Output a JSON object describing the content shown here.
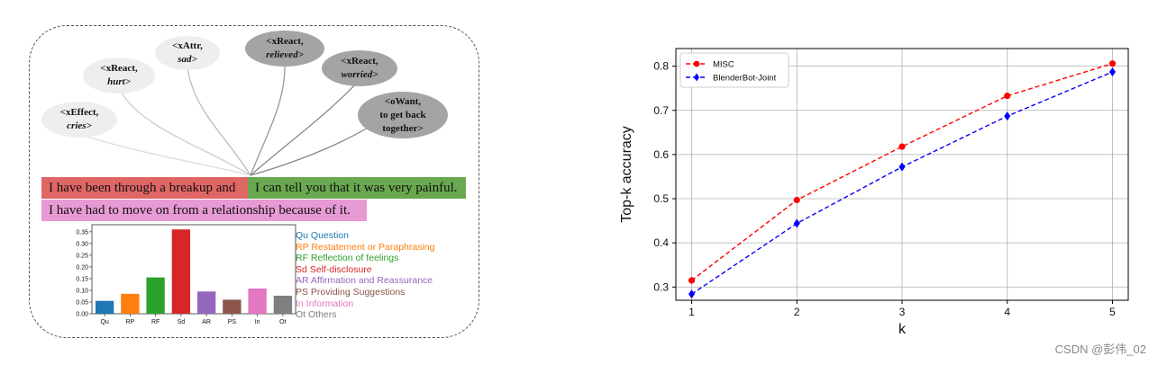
{
  "concepts": [
    {
      "id": "xeffect",
      "relation": "<xEffect,",
      "value": "cries>",
      "tone": "light"
    },
    {
      "id": "xreact-hurt",
      "relation": "<xReact,",
      "value": "hurt>",
      "tone": "light"
    },
    {
      "id": "xattr",
      "relation": "<xAttr,",
      "value": "sad>",
      "tone": "light"
    },
    {
      "id": "xreact-relieved",
      "relation": "<xReact,",
      "value": "relieved>",
      "tone": "dark"
    },
    {
      "id": "xreact-worried",
      "relation": "<xReact,",
      "value": "worried>",
      "tone": "dark"
    },
    {
      "id": "owant",
      "relation": "<oWant,",
      "value": "",
      "tone": "dark",
      "lines": [
        "<oWant,",
        "to get back",
        "together>"
      ]
    }
  ],
  "sentences": [
    {
      "text": "I have been through a breakup and",
      "color": "#e06666"
    },
    {
      "text": "I can tell you that it was very painful.",
      "color": "#6aa84f"
    },
    {
      "text": "I have had to move on from a relationship because of it.",
      "color": "#e79ad4"
    }
  ],
  "strategy_legend": [
    {
      "label": "Qu  Question",
      "color": "#1f77b4"
    },
    {
      "label": "RP Restatement or Paraphrasing",
      "color": "#ff7f0e"
    },
    {
      "label": "RF Reflection of feelings",
      "color": "#2ca02c"
    },
    {
      "label": "Sd Self-disclosure",
      "color": "#d62728"
    },
    {
      "label": "AR Affirmation and Reassurance",
      "color": "#9467bd"
    },
    {
      "label": "PS Providing Suggestions",
      "color": "#8c564b"
    },
    {
      "label": "In Information",
      "color": "#e377c2"
    },
    {
      "label": "Ot Others",
      "color": "#7f7f7f"
    }
  ],
  "chart_data": [
    {
      "type": "bar",
      "categories": [
        "Qu",
        "RP",
        "RF",
        "Sd",
        "AR",
        "PS",
        "In",
        "Ot"
      ],
      "values": [
        0.055,
        0.085,
        0.155,
        0.36,
        0.095,
        0.06,
        0.108,
        0.077
      ],
      "colors": [
        "#1f77b4",
        "#ff7f0e",
        "#2ca02c",
        "#d62728",
        "#9467bd",
        "#8c564b",
        "#e377c2",
        "#7f7f7f"
      ],
      "ylim": [
        0,
        0.38
      ],
      "yticks": [
        "0.00",
        "0.05",
        "0.10",
        "0.15",
        "0.20",
        "0.25",
        "0.30",
        "0.35"
      ],
      "title": "",
      "xlabel": "",
      "ylabel": ""
    },
    {
      "type": "line",
      "x": [
        1,
        2,
        3,
        4,
        5
      ],
      "series": [
        {
          "name": "MISC",
          "values": [
            0.315,
            0.497,
            0.618,
            0.733,
            0.806
          ],
          "color": "#ff0000",
          "marker": "circle"
        },
        {
          "name": "BlenderBot-Joint",
          "values": [
            0.284,
            0.444,
            0.572,
            0.687,
            0.787
          ],
          "color": "#0000ff",
          "marker": "diamond"
        }
      ],
      "xlabel": "k",
      "ylabel": "Top-k accuracy",
      "xlim": [
        0.85,
        5.15
      ],
      "ylim": [
        0.27,
        0.84
      ],
      "xticks": [
        "1",
        "2",
        "3",
        "4",
        "5"
      ],
      "yticks": [
        "0.3",
        "0.4",
        "0.5",
        "0.6",
        "0.7",
        "0.8"
      ],
      "grid": true,
      "legend": "top-left",
      "title": ""
    }
  ],
  "watermark": "CSDN @彭伟_02"
}
